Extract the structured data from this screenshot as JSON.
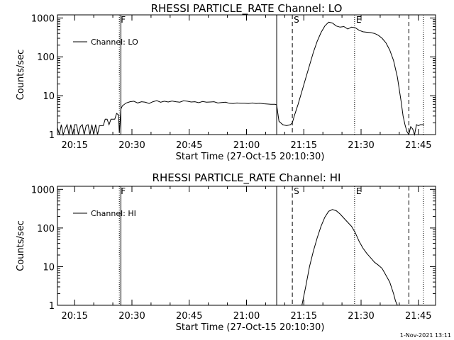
{
  "chart_data": [
    {
      "type": "line",
      "title": "RHESSI PARTICLE_RATE Channel: LO",
      "xlabel": "Start Time (27-Oct-15 20:10:30)",
      "ylabel": "Counts/sec",
      "x_unit": "minutes since 20:10:30",
      "xlim": [
        0,
        99
      ],
      "ylim": [
        1,
        1200
      ],
      "yscale": "log",
      "x_ticks": [
        {
          "m": 4.5,
          "label": "20:15"
        },
        {
          "m": 19.5,
          "label": "20:30"
        },
        {
          "m": 34.5,
          "label": "20:45"
        },
        {
          "m": 49.5,
          "label": "21:00"
        },
        {
          "m": 64.5,
          "label": "21:15"
        },
        {
          "m": 79.5,
          "label": "21:30"
        },
        {
          "m": 94.5,
          "label": "21:45"
        }
      ],
      "y_ticks": [
        {
          "v": 1,
          "label": "1"
        },
        {
          "v": 10,
          "label": "10"
        },
        {
          "v": 100,
          "label": "100"
        },
        {
          "v": 1000,
          "label": "1000"
        }
      ],
      "markers": [
        {
          "m": 16.2,
          "style": "dotted",
          "label": "F"
        },
        {
          "m": 16.6,
          "style": "solid",
          "label": ""
        },
        {
          "m": 57.4,
          "style": "solid",
          "label": ""
        },
        {
          "m": 61.5,
          "style": "dashed",
          "label": "S"
        },
        {
          "m": 77.8,
          "style": "dotted",
          "label": "E"
        },
        {
          "m": 92.0,
          "style": "dashed",
          "label": ""
        },
        {
          "m": 95.8,
          "style": "dotted",
          "label": ""
        }
      ],
      "legend": {
        "position": "top-left",
        "entries": [
          "Channel: LO"
        ]
      },
      "series": [
        {
          "name": "Channel: LO",
          "x": [
            0,
            0.5,
            1,
            1.5,
            2,
            2.5,
            3,
            3.5,
            4,
            4.5,
            5,
            5.5,
            6,
            6.5,
            7,
            7.5,
            8,
            8.5,
            9,
            9.5,
            10,
            10.5,
            11,
            11.5,
            12,
            12.5,
            13,
            13.5,
            14,
            14.5,
            15,
            15.5,
            16,
            16.2,
            16.6,
            17,
            18,
            19,
            20,
            21,
            22,
            23,
            24,
            25,
            26,
            27,
            28,
            29,
            30,
            31,
            32,
            33,
            34,
            35,
            36,
            37,
            38,
            39,
            40,
            41,
            42,
            43,
            44,
            45,
            46,
            47,
            48,
            49,
            50,
            51,
            52,
            53,
            54,
            55,
            56,
            57,
            57.4,
            58,
            59,
            60,
            61,
            61.5,
            62,
            63,
            64,
            65,
            66,
            67,
            68,
            69,
            70,
            71,
            72,
            73,
            74,
            75,
            76,
            77,
            78,
            79,
            80,
            81,
            82,
            83,
            84,
            85,
            86,
            87,
            88,
            89,
            90,
            90.5,
            91,
            91.5,
            92,
            92.5,
            93,
            93.5,
            94,
            94.5,
            95,
            95.5,
            96
          ],
          "y": [
            1.5,
            1,
            1.8,
            1,
            1.4,
            1.8,
            1,
            1.8,
            1,
            1.8,
            1.8,
            1,
            1.6,
            1.8,
            1,
            1.7,
            1.8,
            1,
            1.8,
            1,
            1.8,
            1,
            1.7,
            1.7,
            1.7,
            2.5,
            2.5,
            1.8,
            2.5,
            2.5,
            2.5,
            3.5,
            3.2,
            1.1,
            4.5,
            5.5,
            6.5,
            7.0,
            7.2,
            6.5,
            7.0,
            6.8,
            6.3,
            7.0,
            7.5,
            6.8,
            7.2,
            6.9,
            7.3,
            7.0,
            6.8,
            7.4,
            7.2,
            6.9,
            7.0,
            6.6,
            7.1,
            6.8,
            6.9,
            7.0,
            6.5,
            6.7,
            6.8,
            6.4,
            6.3,
            6.5,
            6.4,
            6.4,
            6.3,
            6.5,
            6.3,
            6.4,
            6.2,
            6.1,
            6.0,
            6.0,
            5.8,
            2.2,
            1.8,
            1.7,
            1.8,
            2.0,
            3.0,
            6.0,
            13,
            28,
            60,
            130,
            250,
            420,
            620,
            780,
            740,
            620,
            580,
            600,
            520,
            580,
            560,
            480,
            440,
            430,
            420,
            400,
            360,
            300,
            230,
            150,
            80,
            30,
            7,
            3,
            1.8,
            1.2,
            1,
            1.6,
            1.4,
            1,
            1.8,
            1.7,
            1.8,
            1.8,
            1.8
          ],
          "color": "#000000"
        }
      ]
    },
    {
      "type": "line",
      "title": "RHESSI PARTICLE_RATE Channel: HI",
      "xlabel": "Start Time (27-Oct-15 20:10:30)",
      "ylabel": "Counts/sec",
      "x_unit": "minutes since 20:10:30",
      "xlim": [
        0,
        99
      ],
      "ylim": [
        1,
        1200
      ],
      "yscale": "log",
      "x_ticks": [
        {
          "m": 4.5,
          "label": "20:15"
        },
        {
          "m": 19.5,
          "label": "20:30"
        },
        {
          "m": 34.5,
          "label": "20:45"
        },
        {
          "m": 49.5,
          "label": "21:00"
        },
        {
          "m": 64.5,
          "label": "21:15"
        },
        {
          "m": 79.5,
          "label": "21:30"
        },
        {
          "m": 94.5,
          "label": "21:45"
        }
      ],
      "y_ticks": [
        {
          "v": 1,
          "label": "1"
        },
        {
          "v": 10,
          "label": "10"
        },
        {
          "v": 100,
          "label": "100"
        },
        {
          "v": 1000,
          "label": "1000"
        }
      ],
      "markers": [
        {
          "m": 16.2,
          "style": "dotted",
          "label": "F"
        },
        {
          "m": 16.6,
          "style": "solid",
          "label": ""
        },
        {
          "m": 57.4,
          "style": "solid",
          "label": ""
        },
        {
          "m": 61.5,
          "style": "dashed",
          "label": "S"
        },
        {
          "m": 77.8,
          "style": "dotted",
          "label": "E"
        },
        {
          "m": 92.0,
          "style": "dashed",
          "label": ""
        },
        {
          "m": 95.8,
          "style": "dotted",
          "label": ""
        }
      ],
      "legend": {
        "position": "top-left",
        "entries": [
          "Channel: HI"
        ]
      },
      "series": [
        {
          "name": "Channel: HI",
          "x": [
            64,
            65,
            66,
            67,
            68,
            69,
            70,
            71,
            72,
            73,
            74,
            75,
            76,
            77,
            78,
            79,
            80,
            81,
            82,
            83,
            84,
            85,
            86,
            87,
            88,
            88.5,
            89
          ],
          "y": [
            1,
            3,
            10,
            25,
            55,
            110,
            190,
            270,
            300,
            280,
            230,
            180,
            140,
            110,
            75,
            45,
            30,
            22,
            17,
            13,
            11,
            9,
            6,
            4,
            2,
            1.3,
            1
          ],
          "color": "#000000"
        }
      ]
    }
  ],
  "footer": {
    "timestamp": "1-Nov-2021 13:11"
  }
}
